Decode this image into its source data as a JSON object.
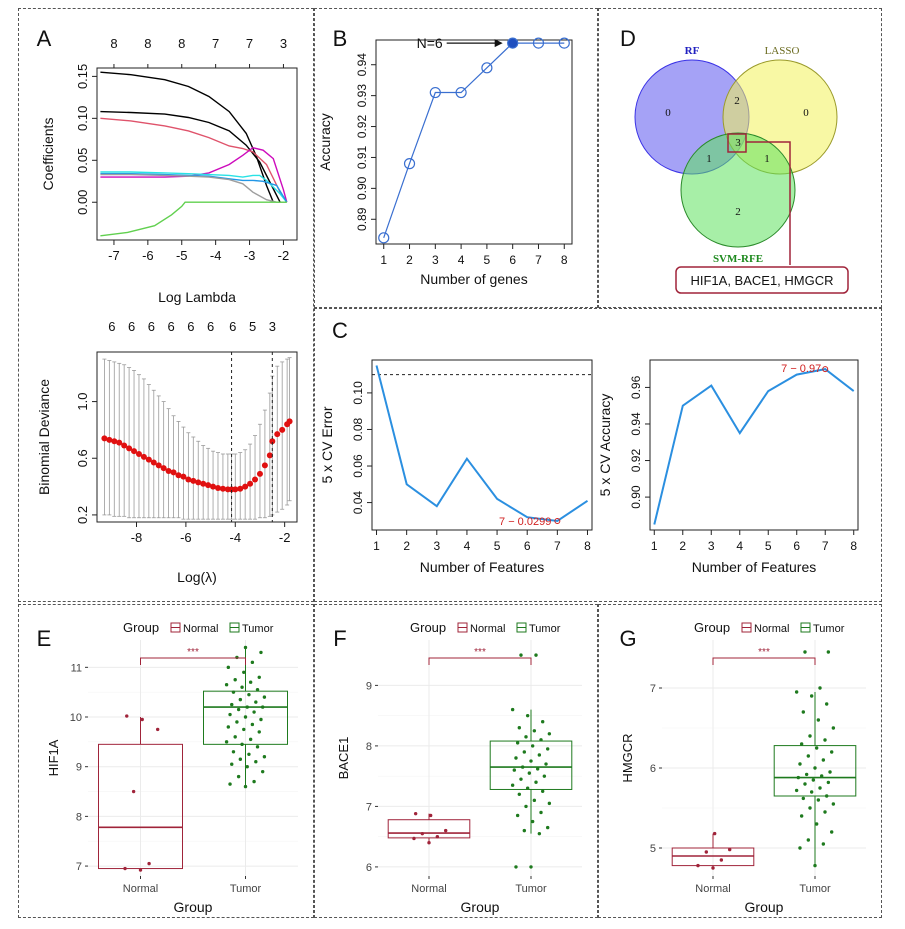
{
  "panel_labels": {
    "A": "A",
    "B": "B",
    "C": "C",
    "D": "D",
    "E": "E",
    "F": "F",
    "G": "G"
  },
  "chart_data": [
    {
      "id": "A1",
      "type": "line",
      "top_ticks": [
        "8",
        "8",
        "8",
        "7",
        "7",
        "3"
      ],
      "top_tick_x": [
        -7,
        -6,
        -5,
        -4,
        -3,
        -2
      ],
      "ylabel": "Coefficients",
      "xlabel": "Log Lambda",
      "xlim": [
        -7.5,
        -1.6
      ],
      "ylim": [
        -0.045,
        0.16
      ],
      "xticks": [
        -7,
        -6,
        -5,
        -4,
        -3,
        -2
      ],
      "xtick_labels": [
        "-7",
        "-6",
        "-5",
        "-4",
        "-3",
        "-2"
      ],
      "yticks": [
        0.0,
        0.05,
        0.1,
        0.15
      ],
      "ytick_labels": [
        "0.00",
        "0.05",
        "0.10",
        "0.15"
      ],
      "series": [
        {
          "color": "#000000",
          "x": [
            -7.4,
            -6.5,
            -5.5,
            -4.8,
            -4.2,
            -3.6,
            -3.1,
            -2.8,
            -2.5,
            -2.3
          ],
          "y": [
            0.155,
            0.152,
            0.146,
            0.138,
            0.126,
            0.108,
            0.082,
            0.055,
            0.02,
            0.0
          ]
        },
        {
          "color": "#000000",
          "x": [
            -7.4,
            -6.5,
            -5.5,
            -4.8,
            -4.2,
            -3.6,
            -3.1,
            -2.7,
            -2.35,
            -2.1
          ],
          "y": [
            0.108,
            0.107,
            0.105,
            0.101,
            0.095,
            0.085,
            0.068,
            0.048,
            0.02,
            0.0
          ]
        },
        {
          "color": "#df536b",
          "x": [
            -7.4,
            -6.5,
            -5.5,
            -4.8,
            -4.2,
            -3.6,
            -3.2,
            -2.9,
            -2.5,
            -2.1,
            -1.9
          ],
          "y": [
            0.1,
            0.097,
            0.091,
            0.085,
            0.077,
            0.067,
            0.064,
            0.06,
            0.045,
            0.012,
            0.0
          ]
        },
        {
          "color": "#cd0bbc",
          "x": [
            -7.4,
            -6.5,
            -5.5,
            -4.8,
            -4.2,
            -3.6,
            -3.2,
            -2.9,
            -2.6,
            -2.3,
            -2.0,
            -1.9
          ],
          "y": [
            0.03,
            0.03,
            0.03,
            0.031,
            0.035,
            0.045,
            0.056,
            0.065,
            0.062,
            0.052,
            0.015,
            0.0
          ]
        },
        {
          "color": "#28e2e5",
          "x": [
            -7.4,
            -6.5,
            -5.5,
            -4.8,
            -4.2,
            -3.6,
            -3.2,
            -2.9,
            -2.7,
            -2.5,
            -2.1,
            -1.9
          ],
          "y": [
            0.036,
            0.036,
            0.035,
            0.034,
            0.033,
            0.032,
            0.03,
            0.032,
            0.032,
            0.026,
            0.01,
            0.0
          ]
        },
        {
          "color": "#2297e6",
          "x": [
            -7.4,
            -6.5,
            -5.5,
            -4.8,
            -4.2,
            -3.6,
            -3.2,
            -2.9,
            -2.6,
            -2.2,
            -1.9
          ],
          "y": [
            0.034,
            0.034,
            0.033,
            0.032,
            0.031,
            0.028,
            0.026,
            0.026,
            0.025,
            0.02,
            0.0
          ]
        },
        {
          "color": "#9e9e9e",
          "x": [
            -7.4,
            -6.5,
            -5.5,
            -4.8,
            -4.2,
            -3.6,
            -3.2,
            -2.9,
            -2.5,
            -2.2,
            -1.9
          ],
          "y": [
            0.033,
            0.033,
            0.032,
            0.031,
            0.03,
            0.027,
            0.022,
            0.012,
            0.003,
            0.0,
            0.0
          ]
        },
        {
          "color": "#61d04f",
          "x": [
            -7.4,
            -6.6,
            -5.8,
            -5.3,
            -5.0,
            -4.9,
            -4.0,
            -3.0,
            -1.9
          ],
          "y": [
            -0.04,
            -0.036,
            -0.028,
            -0.015,
            -0.005,
            0.0,
            0.0,
            0.0,
            0.0
          ]
        }
      ]
    },
    {
      "id": "A2",
      "type": "scatter",
      "top_ticks": [
        "6",
        "6",
        "6",
        "6",
        "6",
        "6",
        "6",
        "5",
        "3"
      ],
      "top_tick_x": [
        -9.0,
        -8.2,
        -7.4,
        -6.6,
        -5.8,
        -5.0,
        -4.1,
        -3.3,
        -2.5
      ],
      "ylabel": "Binomial Deviance",
      "xlabel": "Log(λ)",
      "xlim": [
        -9.6,
        -1.5
      ],
      "ylim": [
        0.15,
        1.35
      ],
      "xticks": [
        -8,
        -6,
        -4,
        -2
      ],
      "xtick_labels": [
        "-8",
        "-6",
        "-4",
        "-2"
      ],
      "yticks": [
        0.2,
        0.6,
        1.0
      ],
      "ytick_labels": [
        "0.2",
        "0.6",
        "1.0"
      ],
      "vlines": [
        -4.15,
        -2.5
      ],
      "points_x": [
        -9.3,
        -9.1,
        -8.9,
        -8.7,
        -8.5,
        -8.3,
        -8.1,
        -7.9,
        -7.7,
        -7.5,
        -7.3,
        -7.1,
        -6.9,
        -6.7,
        -6.5,
        -6.3,
        -6.1,
        -5.9,
        -5.7,
        -5.5,
        -5.3,
        -5.1,
        -4.9,
        -4.7,
        -4.5,
        -4.3,
        -4.15,
        -4.0,
        -3.8,
        -3.6,
        -3.4,
        -3.2,
        -3.0,
        -2.8,
        -2.6,
        -2.5,
        -2.3,
        -2.1,
        -1.9,
        -1.8
      ],
      "points_y": [
        0.74,
        0.73,
        0.72,
        0.71,
        0.69,
        0.67,
        0.65,
        0.63,
        0.61,
        0.59,
        0.57,
        0.55,
        0.53,
        0.51,
        0.5,
        0.48,
        0.47,
        0.45,
        0.44,
        0.43,
        0.42,
        0.41,
        0.4,
        0.39,
        0.385,
        0.38,
        0.38,
        0.38,
        0.385,
        0.4,
        0.42,
        0.45,
        0.49,
        0.55,
        0.62,
        0.72,
        0.77,
        0.8,
        0.84,
        0.86
      ],
      "err_up": [
        1.3,
        1.29,
        1.28,
        1.27,
        1.26,
        1.24,
        1.22,
        1.19,
        1.16,
        1.12,
        1.08,
        1.04,
        1.0,
        0.95,
        0.9,
        0.86,
        0.82,
        0.78,
        0.75,
        0.72,
        0.69,
        0.67,
        0.65,
        0.64,
        0.63,
        0.63,
        0.63,
        0.63,
        0.64,
        0.66,
        0.7,
        0.76,
        0.84,
        0.94,
        1.06,
        1.18,
        1.25,
        1.28,
        1.3,
        1.31
      ],
      "err_low": [
        0.2,
        0.2,
        0.19,
        0.19,
        0.19,
        0.18,
        0.18,
        0.18,
        0.18,
        0.18,
        0.18,
        0.18,
        0.18,
        0.18,
        0.18,
        0.18,
        0.17,
        0.17,
        0.17,
        0.17,
        0.17,
        0.17,
        0.17,
        0.17,
        0.17,
        0.17,
        0.17,
        0.17,
        0.17,
        0.17,
        0.17,
        0.17,
        0.18,
        0.18,
        0.19,
        0.2,
        0.22,
        0.24,
        0.27,
        0.3
      ]
    },
    {
      "id": "B",
      "type": "line",
      "ylabel": "Accuracy",
      "xlabel": "Number of genes",
      "xlim": [
        0.7,
        8.3
      ],
      "ylim": [
        0.882,
        0.948
      ],
      "xticks": [
        1,
        2,
        3,
        4,
        5,
        6,
        7,
        8
      ],
      "xtick_labels": [
        "1",
        "2",
        "3",
        "4",
        "5",
        "6",
        "7",
        "8"
      ],
      "yticks": [
        0.89,
        0.9,
        0.91,
        0.92,
        0.93,
        0.94
      ],
      "ytick_labels": [
        "0.89",
        "0.90",
        "0.91",
        "0.92",
        "0.93",
        "0.94"
      ],
      "x": [
        1,
        2,
        3,
        4,
        5,
        6,
        7,
        8
      ],
      "y": [
        0.884,
        0.908,
        0.931,
        0.931,
        0.939,
        0.947,
        0.947,
        0.947
      ],
      "highlight_index": 5,
      "annotation": "N=6"
    },
    {
      "id": "C1",
      "type": "line",
      "ylabel": "5 x CV Error",
      "xlabel": "Number of Features",
      "xlim": [
        0.85,
        8.15
      ],
      "ylim": [
        0.025,
        0.118
      ],
      "xticks": [
        1,
        2,
        3,
        4,
        5,
        6,
        7,
        8
      ],
      "xtick_labels": [
        "1",
        "2",
        "3",
        "4",
        "5",
        "6",
        "7",
        "8"
      ],
      "yticks": [
        0.04,
        0.06,
        0.08,
        0.1
      ],
      "ytick_labels": [
        "0.04",
        "0.06",
        "0.08",
        "0.10"
      ],
      "x": [
        1,
        2,
        3,
        4,
        5,
        6,
        7,
        8
      ],
      "y": [
        0.115,
        0.05,
        0.038,
        0.064,
        0.042,
        0.032,
        0.0299,
        0.041
      ],
      "hline": 0.11,
      "annotation": "7 − 0.0299"
    },
    {
      "id": "C2",
      "type": "line",
      "ylabel": "5 x CV Accuracy",
      "xlabel": "Number of Features",
      "xlim": [
        0.85,
        8.15
      ],
      "ylim": [
        0.882,
        0.975
      ],
      "xticks": [
        1,
        2,
        3,
        4,
        5,
        6,
        7,
        8
      ],
      "xtick_labels": [
        "1",
        "2",
        "3",
        "4",
        "5",
        "6",
        "7",
        "8"
      ],
      "yticks": [
        0.9,
        0.92,
        0.94,
        0.96
      ],
      "ytick_labels": [
        "0.90",
        "0.92",
        "0.94",
        "0.96"
      ],
      "x": [
        1,
        2,
        3,
        4,
        5,
        6,
        7,
        8
      ],
      "y": [
        0.885,
        0.95,
        0.961,
        0.935,
        0.958,
        0.967,
        0.97,
        0.958
      ],
      "annotation": "7 − 0.97"
    },
    {
      "id": "D",
      "type": "venn",
      "sets": [
        {
          "name": "RF",
          "color": "#3a32e6",
          "fill": "#5b56ee",
          "label_color": "#2020c0"
        },
        {
          "name": "LASSO",
          "color": "#9a9a2a",
          "fill": "#f2f25a",
          "label_color": "#6b6b20"
        },
        {
          "name": "SVM-RFE",
          "color": "#2a8a2a",
          "fill": "#5ee25e",
          "label_color": "#1f8a1f"
        }
      ],
      "counts": {
        "rf_only": "0",
        "lasso_only": "0",
        "svm_only": "2",
        "rf_lasso": "2",
        "rf_svm": "1",
        "lasso_svm": "1",
        "all": "3"
      },
      "result": "HIF1A, BACE1, HMGCR"
    },
    {
      "id": "E",
      "type": "box",
      "legend_title": "Group",
      "legend_items": [
        "Normal",
        "Tumor"
      ],
      "legend_colors": [
        "#a0243a",
        "#1e7a1e"
      ],
      "ylabel": "HIF1A",
      "xlabel": "Group",
      "significance": "***",
      "categories": [
        "Normal",
        "Tumor"
      ],
      "ylim": [
        6.8,
        11.55
      ],
      "yticks": [
        7,
        8,
        9,
        10,
        11
      ],
      "ytick_labels": [
        "7",
        "8",
        "9",
        "10",
        "11"
      ],
      "boxes": [
        {
          "min": 6.95,
          "q1": 6.95,
          "median": 7.78,
          "q3": 9.45,
          "max": 10.0
        },
        {
          "min": 8.6,
          "q1": 9.45,
          "median": 10.2,
          "q3": 10.52,
          "max": 11.4
        }
      ],
      "points": [
        [
          6.92,
          6.95,
          7.05,
          8.5,
          9.75,
          9.95,
          10.02
        ],
        [
          8.6,
          8.65,
          8.7,
          8.8,
          8.9,
          9.0,
          9.05,
          9.1,
          9.15,
          9.2,
          9.25,
          9.3,
          9.4,
          9.45,
          9.5,
          9.55,
          9.6,
          9.7,
          9.75,
          9.8,
          9.85,
          9.9,
          9.95,
          10.0,
          10.05,
          10.1,
          10.15,
          10.2,
          10.2,
          10.25,
          10.3,
          10.35,
          10.4,
          10.45,
          10.5,
          10.55,
          10.6,
          10.65,
          10.7,
          10.75,
          10.8,
          10.9,
          11.0,
          11.1,
          11.2,
          11.3,
          11.4
        ]
      ]
    },
    {
      "id": "F",
      "type": "box",
      "legend_title": "Group",
      "legend_items": [
        "Normal",
        "Tumor"
      ],
      "legend_colors": [
        "#a0243a",
        "#1e7a1e"
      ],
      "ylabel": "BACE1",
      "xlabel": "Group",
      "significance": "***",
      "categories": [
        "Normal",
        "Tumor"
      ],
      "ylim": [
        5.85,
        9.75
      ],
      "yticks": [
        6,
        7,
        8,
        9
      ],
      "ytick_labels": [
        "6",
        "7",
        "8",
        "9"
      ],
      "boxes": [
        {
          "min": 6.4,
          "q1": 6.48,
          "median": 6.56,
          "q3": 6.78,
          "max": 6.88
        },
        {
          "min": 6.55,
          "q1": 7.28,
          "median": 7.65,
          "q3": 8.08,
          "max": 8.6
        }
      ],
      "points": [
        [
          6.4,
          6.47,
          6.5,
          6.55,
          6.6,
          6.85,
          6.88
        ],
        [
          6.0,
          6.0,
          6.55,
          6.6,
          6.65,
          6.75,
          6.85,
          6.9,
          7.0,
          7.05,
          7.1,
          7.2,
          7.25,
          7.3,
          7.35,
          7.4,
          7.45,
          7.5,
          7.55,
          7.6,
          7.62,
          7.65,
          7.7,
          7.75,
          7.8,
          7.85,
          7.9,
          7.95,
          8.0,
          8.05,
          8.1,
          8.15,
          8.2,
          8.25,
          8.3,
          8.4,
          8.5,
          8.6,
          9.5,
          9.5
        ]
      ]
    },
    {
      "id": "G",
      "type": "box",
      "legend_title": "Group",
      "legend_items": [
        "Normal",
        "Tumor"
      ],
      "legend_colors": [
        "#a0243a",
        "#1e7a1e"
      ],
      "ylabel": "HMGCR",
      "xlabel": "Group",
      "significance": "***",
      "categories": [
        "Normal",
        "Tumor"
      ],
      "ylim": [
        4.65,
        7.6
      ],
      "yticks": [
        5,
        6,
        7
      ],
      "ytick_labels": [
        "5",
        "6",
        "7"
      ],
      "boxes": [
        {
          "min": 4.75,
          "q1": 4.78,
          "median": 4.9,
          "q3": 5.0,
          "max": 5.18
        },
        {
          "min": 4.78,
          "q1": 5.65,
          "median": 5.88,
          "q3": 6.28,
          "max": 6.95
        }
      ],
      "points": [
        [
          4.75,
          4.78,
          4.85,
          4.95,
          4.98,
          5.18
        ],
        [
          4.78,
          5.0,
          5.05,
          5.1,
          5.2,
          5.3,
          5.4,
          5.45,
          5.5,
          5.55,
          5.6,
          5.62,
          5.65,
          5.7,
          5.72,
          5.75,
          5.8,
          5.82,
          5.85,
          5.88,
          5.9,
          5.92,
          5.95,
          6.0,
          6.05,
          6.1,
          6.15,
          6.2,
          6.25,
          6.3,
          6.35,
          6.4,
          6.5,
          6.6,
          6.7,
          6.8,
          6.9,
          6.95,
          7.0,
          7.45,
          7.45
        ]
      ]
    }
  ]
}
